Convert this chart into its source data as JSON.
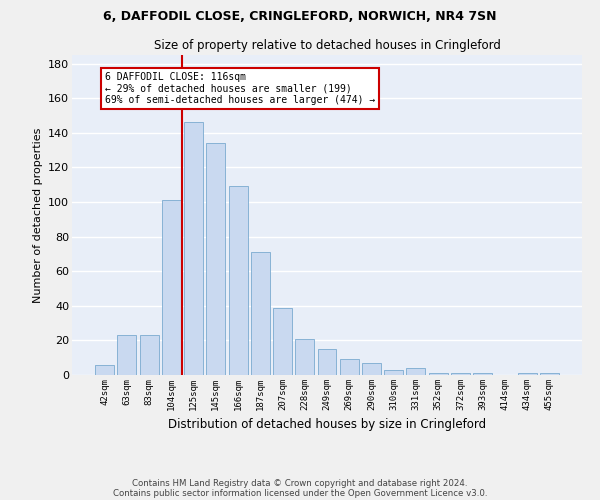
{
  "title": "6, DAFFODIL CLOSE, CRINGLEFORD, NORWICH, NR4 7SN",
  "subtitle": "Size of property relative to detached houses in Cringleford",
  "xlabel": "Distribution of detached houses by size in Cringleford",
  "ylabel": "Number of detached properties",
  "categories": [
    "42sqm",
    "63sqm",
    "83sqm",
    "104sqm",
    "125sqm",
    "145sqm",
    "166sqm",
    "187sqm",
    "207sqm",
    "228sqm",
    "249sqm",
    "269sqm",
    "290sqm",
    "310sqm",
    "331sqm",
    "352sqm",
    "372sqm",
    "393sqm",
    "414sqm",
    "434sqm",
    "455sqm"
  ],
  "values": [
    6,
    23,
    23,
    101,
    146,
    134,
    109,
    71,
    39,
    21,
    15,
    9,
    7,
    3,
    4,
    1,
    1,
    1,
    0,
    1,
    1
  ],
  "bar_color": "#c9d9f0",
  "bar_edge_color": "#7aaad0",
  "vline_x": 3.5,
  "annotation_line1": "6 DAFFODIL CLOSE: 116sqm",
  "annotation_line2": "← 29% of detached houses are smaller (199)",
  "annotation_line3": "69% of semi-detached houses are larger (474) →",
  "annotation_box_color": "#ffffff",
  "annotation_box_edge": "#cc0000",
  "vline_color": "#cc0000",
  "ylim": [
    0,
    185
  ],
  "yticks": [
    0,
    20,
    40,
    60,
    80,
    100,
    120,
    140,
    160,
    180
  ],
  "footer1": "Contains HM Land Registry data © Crown copyright and database right 2024.",
  "footer2": "Contains public sector information licensed under the Open Government Licence v3.0.",
  "background_color": "#e8eef8",
  "grid_color": "#ffffff",
  "fig_bg": "#f0f0f0"
}
